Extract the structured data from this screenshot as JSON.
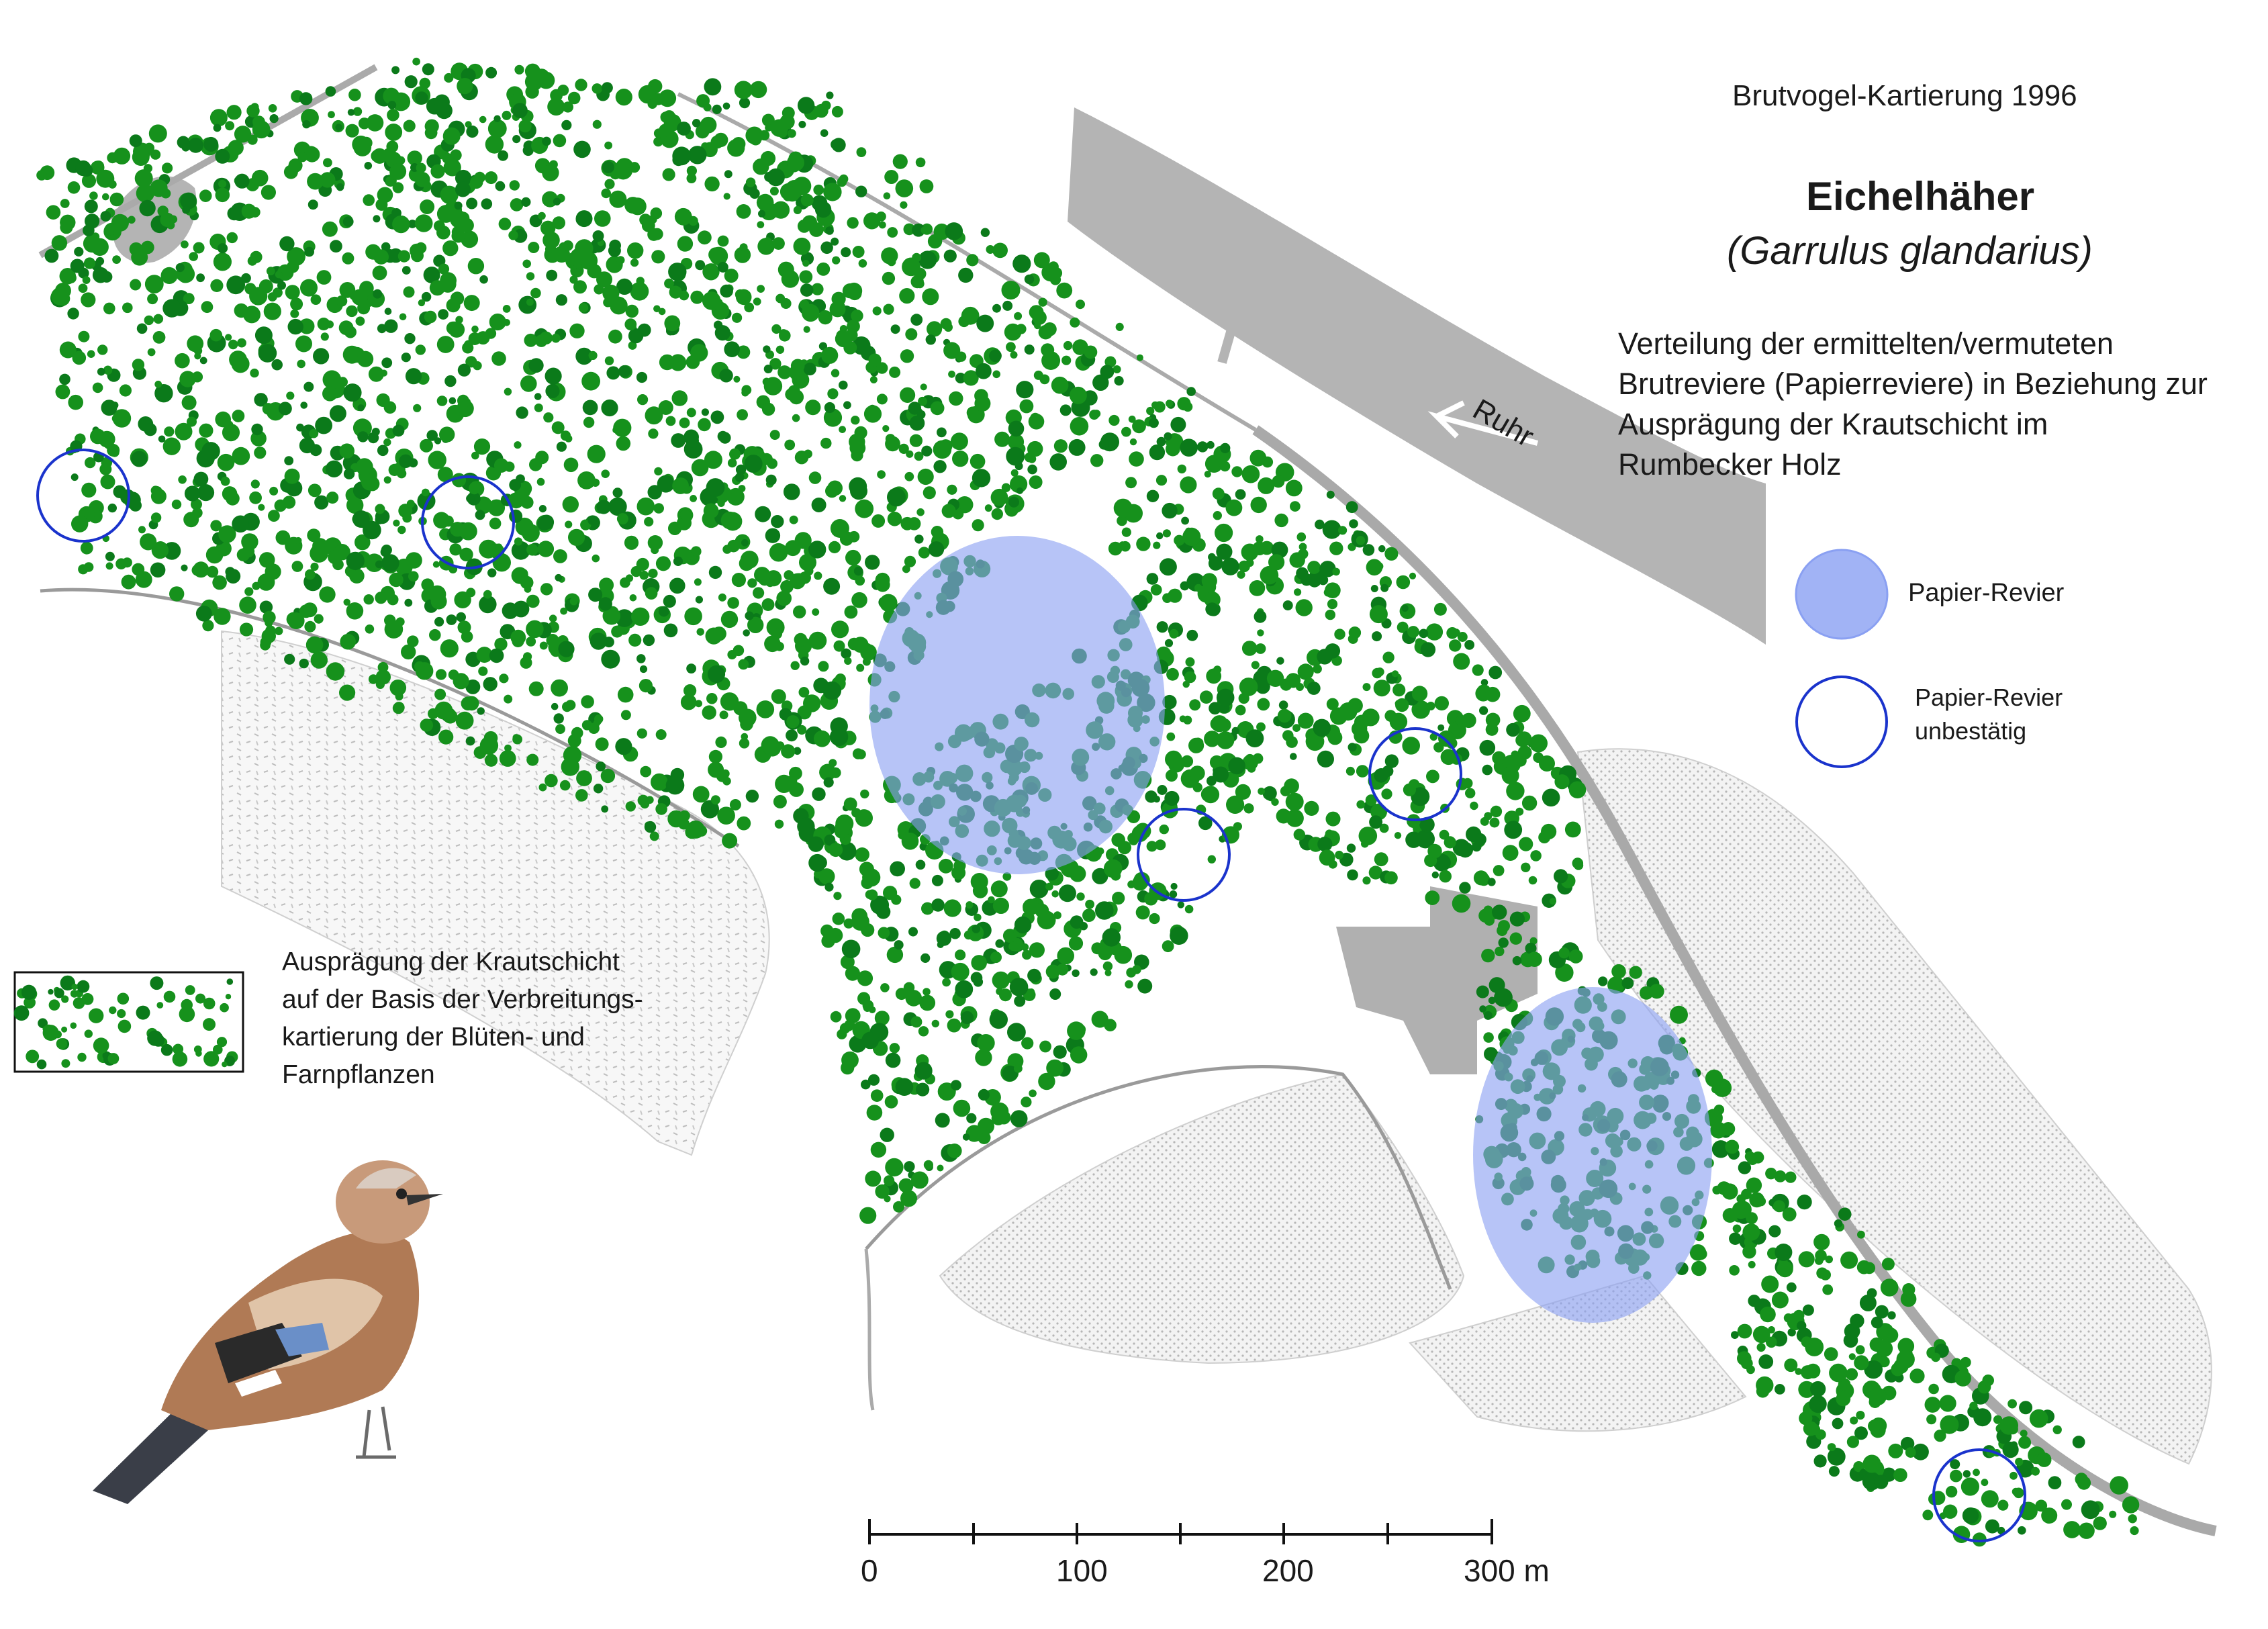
{
  "title": {
    "survey": "Brutvogel-Kartierung 1996",
    "species_common": "Eichelhäher",
    "species_latin": "(Garrulus glandarius)"
  },
  "description_lines": [
    "Verteilung der ermittelten/vermuteten",
    "Brutreviere (Papierreviere) in Beziehung zur",
    "Ausprägung der Krautschicht im",
    "Rumbecker Holz"
  ],
  "river": {
    "name": "Ruhr"
  },
  "legend": {
    "paper_territory": "Papier-Revier",
    "unconfirmed_lines": [
      "Papier-Revier",
      "unbestätig"
    ],
    "vegetation_lines": [
      "Ausprägung der Krautschicht",
      "auf der Basis der Verbreitungs-",
      "kartierung der Blüten- und",
      "Farnpflanzen"
    ]
  },
  "scale_bar": {
    "labels": [
      "0",
      "100",
      "200",
      "300 m"
    ],
    "max_m": 300
  },
  "territories": {
    "confirmed_count": 2,
    "unconfirmed_count": 6
  },
  "illustration": {
    "subject": "jay-bird-icon"
  },
  "colors": {
    "vegetation_dot": "#16911c",
    "vegetation_dot_dark": "#0b7a1a",
    "paper_territory_fill": "#8aa0f2",
    "unconfirmed_circle": "#1a33cc",
    "built_gray": "#b0b0b0",
    "stipple_gray": "#c4c4c4"
  }
}
